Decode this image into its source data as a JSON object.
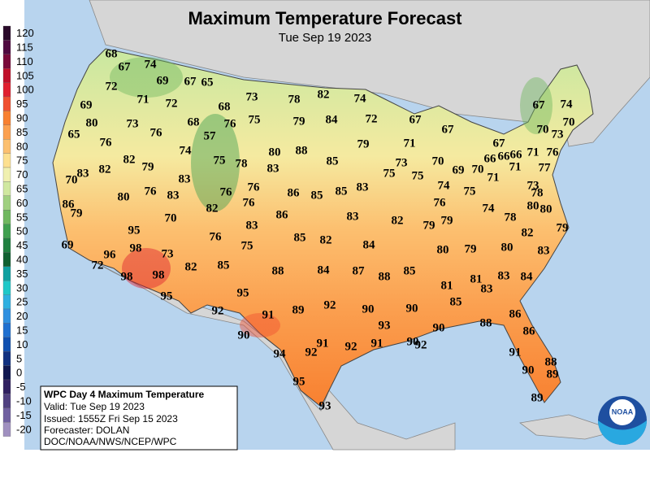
{
  "header": {
    "title": "Maximum Temperature Forecast",
    "subtitle": "Tue Sep 19 2023"
  },
  "legend": {
    "values": [
      120,
      115,
      110,
      105,
      100,
      95,
      90,
      85,
      80,
      75,
      70,
      65,
      60,
      55,
      50,
      45,
      40,
      35,
      30,
      25,
      20,
      15,
      10,
      5,
      0,
      -5,
      -10,
      -15,
      -20
    ],
    "colors": [
      "#2a0a2a",
      "#500a40",
      "#7a0a3a",
      "#c0102a",
      "#e02030",
      "#f05030",
      "#f88030",
      "#fba050",
      "#fcc070",
      "#fde090",
      "#f0f0b0",
      "#d0e8a0",
      "#a0d080",
      "#70b860",
      "#40a050",
      "#208040",
      "#106030",
      "#10a0a0",
      "#20c8c8",
      "#30b0e0",
      "#3090e0",
      "#2070d0",
      "#1050b0",
      "#103080",
      "#101850",
      "#302060",
      "#504080",
      "#7060a0",
      "#a090c0"
    ]
  },
  "temperatures": [
    68,
    67,
    74,
    72,
    69,
    67,
    65,
    71,
    72,
    69,
    68,
    73,
    78,
    82,
    74,
    80,
    73,
    76,
    68,
    57,
    76,
    75,
    79,
    84,
    72,
    67,
    67,
    67,
    74,
    70,
    65,
    76,
    74,
    80,
    88,
    85,
    79,
    71,
    67,
    70,
    73,
    70,
    83,
    82,
    82,
    79,
    75,
    78,
    83,
    73,
    70,
    69,
    70,
    66,
    66,
    66,
    71,
    76,
    71,
    77,
    83,
    76,
    75,
    75,
    74,
    86,
    80,
    76,
    83,
    76,
    86,
    85,
    85,
    83,
    76,
    75,
    71,
    73,
    78,
    79,
    82,
    76,
    86,
    83,
    82,
    79,
    79,
    74,
    80,
    80,
    78,
    70,
    95,
    83,
    79,
    69,
    98,
    96,
    73,
    76,
    75,
    85,
    82,
    84,
    80,
    79,
    80,
    82,
    83,
    72,
    98,
    98,
    82,
    85,
    88,
    84,
    87,
    88,
    85,
    81,
    81,
    83,
    83,
    84,
    95,
    95,
    92,
    91,
    89,
    92,
    90,
    90,
    85,
    86,
    90,
    93,
    90,
    88,
    86,
    94,
    92,
    91,
    92,
    91,
    90,
    92,
    91,
    88,
    90,
    89,
    95,
    93,
    89
  ],
  "info": {
    "title": "WPC Day 4 Maximum Temperature",
    "lines": [
      "Valid: Tue Sep 19 2023",
      "Issued: 1555Z Fri Sep 15 2023",
      "Forecaster: DOLAN",
      "DOC/NOAA/NWS/NCEP/WPC"
    ]
  },
  "logo": "NOAA"
}
